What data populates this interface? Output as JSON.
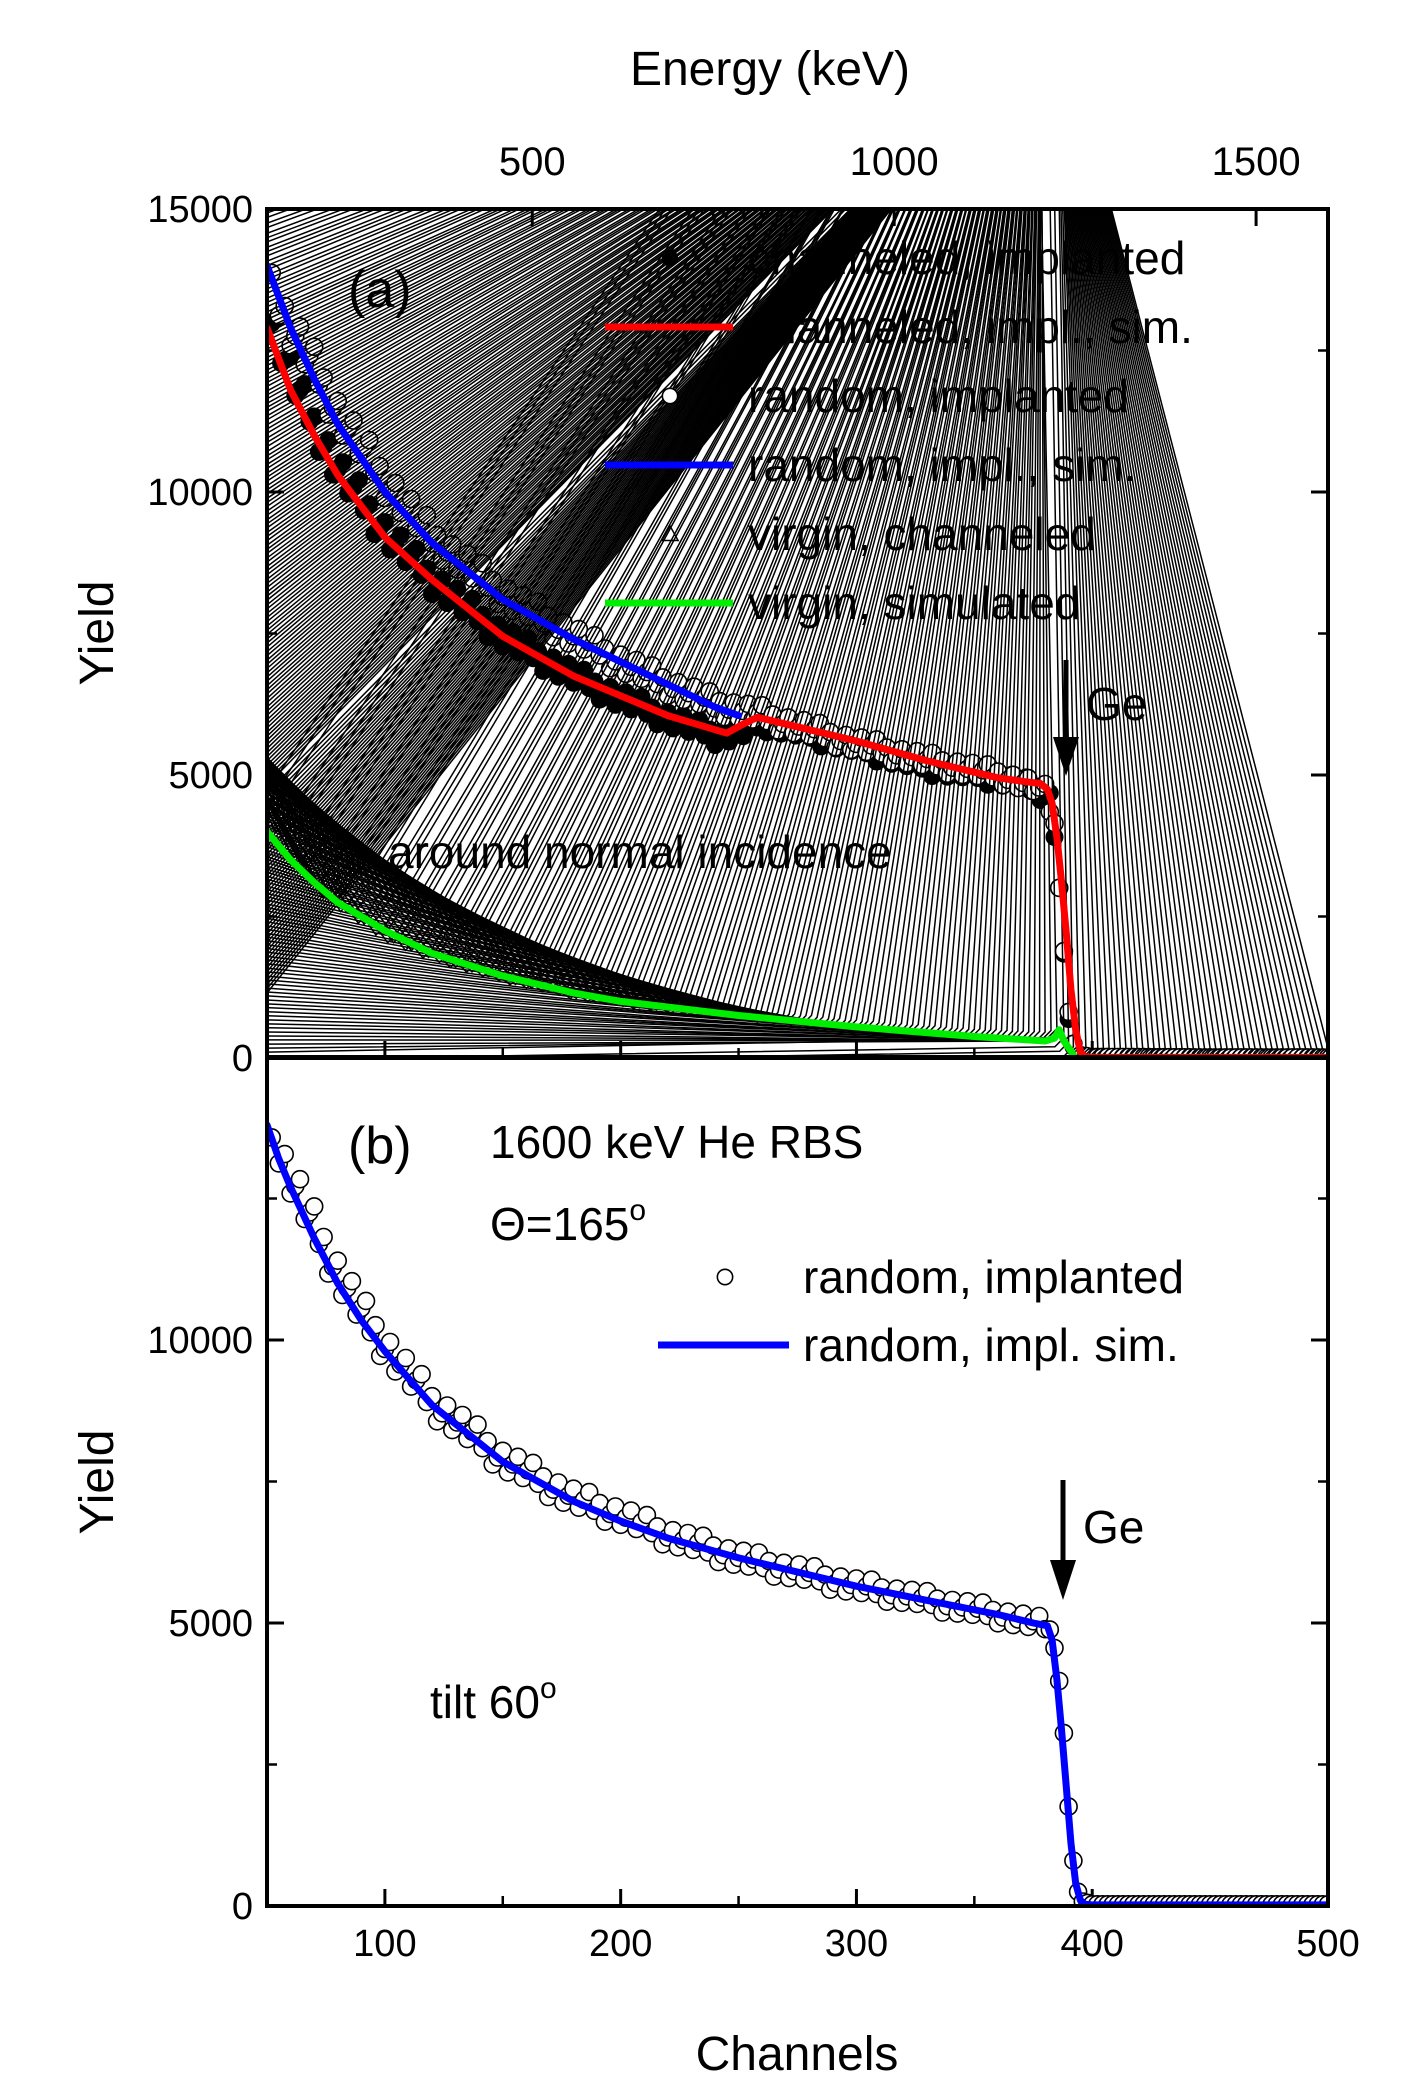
{
  "top_axis": {
    "label": "Energy (keV)",
    "ticks": [
      500,
      1000,
      1500
    ],
    "channel_at_0keV": 9.0,
    "channels_per_keV": 0.307
  },
  "chart_data": [
    {
      "type": "scatter",
      "panel_label": "(a)",
      "xlabel": "",
      "ylabel": "Yield",
      "xlim": [
        50,
        500
      ],
      "ylim": [
        0,
        15000
      ],
      "y_ticks": [
        0,
        5000,
        10000,
        15000
      ],
      "annotations": {
        "ge": "Ge",
        "condition": "around normal incidence"
      },
      "legend_position": "top-right",
      "series": [
        {
          "name": "channeled, implanted",
          "style": "filled-circle",
          "color": "#000000",
          "x": [
            50,
            60,
            70,
            80,
            100,
            120,
            150,
            180,
            200,
            220,
            240,
            250,
            260,
            270,
            300,
            330,
            360,
            370,
            378,
            382,
            384,
            386,
            388,
            390,
            392,
            394,
            396,
            400,
            420,
            450,
            500
          ],
          "y": [
            13300,
            12100,
            11200,
            10400,
            9300,
            8450,
            7450,
            6750,
            6350,
            6000,
            5700,
            5750,
            5950,
            5850,
            5500,
            5150,
            4950,
            4850,
            4700,
            4600,
            4000,
            3000,
            1800,
            700,
            200,
            50,
            20,
            10,
            10,
            10,
            10
          ]
        },
        {
          "name": "channeled, impl., sim.",
          "style": "line",
          "color": "#ff0000",
          "x": [
            50,
            60,
            70,
            80,
            100,
            120,
            150,
            180,
            200,
            220,
            240,
            245,
            252,
            258,
            265,
            280,
            300,
            330,
            360,
            372,
            378,
            381,
            383,
            385,
            387,
            389,
            391,
            393,
            395,
            397,
            400,
            450,
            500
          ],
          "y": [
            12900,
            11800,
            11000,
            10300,
            9200,
            8450,
            7450,
            6750,
            6400,
            6050,
            5800,
            5740,
            5900,
            6020,
            5950,
            5800,
            5600,
            5250,
            4950,
            4880,
            4850,
            4750,
            4500,
            3900,
            3100,
            2200,
            1200,
            500,
            100,
            20,
            10,
            10,
            10
          ]
        },
        {
          "name": "random, implanted",
          "style": "open-circle",
          "color": "#000000",
          "x": [
            52,
            55,
            60,
            70,
            80,
            100,
            120,
            150,
            180,
            200,
            220,
            240,
            250,
            260,
            280,
            300,
            330,
            360,
            375,
            380,
            384,
            386,
            388,
            390,
            392,
            395,
            400,
            450,
            500
          ],
          "y": [
            14300,
            13200,
            12900,
            12200,
            11400,
            10200,
            9200,
            8200,
            7450,
            7000,
            6600,
            6250,
            6150,
            6050,
            5800,
            5550,
            5250,
            5000,
            4800,
            4700,
            4100,
            3100,
            1900,
            800,
            250,
            50,
            20,
            10,
            10
          ]
        },
        {
          "name": "random, impl., sim.",
          "style": "line",
          "color": "#0000ff",
          "x": [
            50,
            60,
            70,
            80,
            90,
            100,
            120,
            150,
            180,
            200,
            220,
            240,
            250
          ],
          "y": [
            14000,
            12900,
            12000,
            11200,
            10600,
            10000,
            9100,
            8100,
            7400,
            7000,
            6600,
            6200,
            6050
          ]
        },
        {
          "name": "virgin, channeled",
          "style": "open-triangle",
          "color": "#000000",
          "x": [
            50,
            55,
            60,
            70,
            80,
            100,
            120,
            150,
            180,
            200,
            250,
            300,
            350,
            380,
            385,
            388,
            392,
            400,
            450,
            500
          ],
          "y": [
            4700,
            4300,
            3900,
            3300,
            2800,
            2200,
            1800,
            1400,
            1100,
            950,
            700,
            500,
            350,
            300,
            350,
            200,
            40,
            10,
            10,
            10
          ]
        },
        {
          "name": "virgin, simulated",
          "style": "line",
          "color": "#00ee00",
          "x": [
            50,
            60,
            70,
            80,
            100,
            120,
            150,
            180,
            200,
            250,
            300,
            350,
            380,
            384,
            386,
            388,
            392
          ],
          "y": [
            4000,
            3500,
            3100,
            2750,
            2250,
            1850,
            1450,
            1150,
            1000,
            750,
            550,
            380,
            300,
            350,
            500,
            300,
            60
          ]
        }
      ]
    },
    {
      "type": "scatter",
      "panel_label": "(b)",
      "xlabel": "Channels",
      "ylabel": "Yield",
      "xlim": [
        50,
        500
      ],
      "ylim": [
        0,
        15000
      ],
      "x_ticks": [
        100,
        200,
        300,
        400,
        500
      ],
      "y_ticks": [
        0,
        5000,
        10000
      ],
      "annotations": {
        "ge": "Ge",
        "beam": "1600 keV He RBS",
        "theta_prefix": "Θ=165",
        "theta_sup": "o",
        "tilt_prefix": "tilt 60",
        "tilt_sup": "o"
      },
      "legend_position": "top-right",
      "series": [
        {
          "name": "random, implanted",
          "style": "open-circle",
          "color": "#000000",
          "x": [
            52,
            55,
            60,
            70,
            80,
            90,
            100,
            120,
            150,
            180,
            200,
            220,
            250,
            280,
            300,
            330,
            360,
            375,
            380,
            384,
            386,
            388,
            390,
            392,
            394,
            396,
            400,
            450,
            500
          ],
          "y": [
            14000,
            13200,
            12900,
            12000,
            11200,
            10500,
            9900,
            8900,
            7900,
            7200,
            6900,
            6550,
            6150,
            5850,
            5650,
            5400,
            5150,
            5000,
            4950,
            4700,
            4000,
            3000,
            1800,
            800,
            250,
            80,
            30,
            30,
            30
          ]
        },
        {
          "name": "random, impl. sim.",
          "style": "line",
          "color": "#0000ff",
          "x": [
            50,
            55,
            60,
            70,
            80,
            90,
            100,
            120,
            150,
            180,
            200,
            220,
            250,
            280,
            300,
            330,
            360,
            375,
            381,
            383,
            385,
            387,
            389,
            391,
            393,
            395,
            397,
            400,
            450,
            500
          ],
          "y": [
            13800,
            13200,
            12700,
            11800,
            11000,
            10350,
            9800,
            8850,
            7850,
            7150,
            6800,
            6500,
            6150,
            5850,
            5650,
            5400,
            5150,
            5000,
            4950,
            4700,
            4000,
            3100,
            2100,
            1100,
            400,
            100,
            30,
            20,
            20,
            20
          ]
        }
      ]
    }
  ]
}
